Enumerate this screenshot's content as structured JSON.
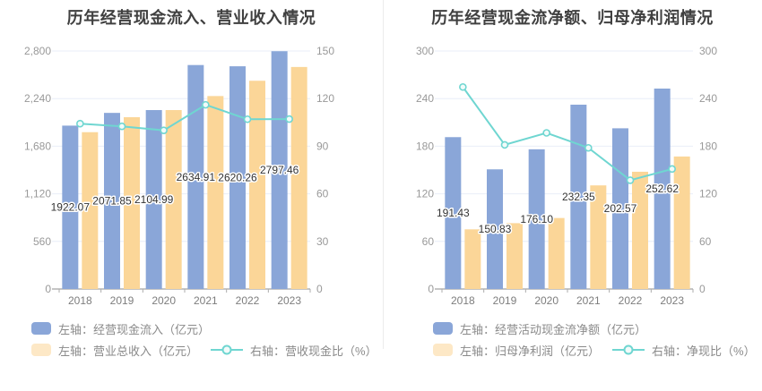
{
  "colors": {
    "background": "#FFFFFF",
    "bar_blue": "#8AA6D8",
    "bar_yellow": "#FBD698",
    "line_teal": "#6FD6D1",
    "grid": "#E9EEF8",
    "axis_line": "#8C8C8C",
    "boundary_tick": "#ADADAD",
    "tick_text": "#999999",
    "year_text": "#7D7D7D",
    "value_label": "#333333",
    "title_text": "#404040",
    "legend_text": "#8A8A8A",
    "divider": "#ECECEC",
    "marker_fill": "#F2FBFA"
  },
  "chart_data": [
    {
      "type": "bar",
      "title": "历年经营现金流入、营业收入情况",
      "categories": [
        "2018",
        "2019",
        "2020",
        "2021",
        "2022",
        "2023"
      ],
      "left_axis": {
        "min": 0,
        "max": 2800,
        "tick_labels": [
          "2,800",
          "2,240",
          "1,680",
          "1,120",
          "560",
          "0"
        ]
      },
      "right_axis": {
        "min": 0,
        "max": 150,
        "tick_labels": [
          "150",
          "120",
          "90",
          "60",
          "30",
          "0"
        ]
      },
      "grid": true,
      "legend_position": "bottom-left",
      "series": [
        {
          "kind": "bar",
          "axis": "left",
          "name": "经营现金流入",
          "legend_label": "左轴：经营现金流入（亿元）",
          "color": "#8AA6D8",
          "values": [
            1922.07,
            2071.85,
            2104.99,
            2634.91,
            2620.26,
            2797.46
          ],
          "labels": [
            "1922.07",
            "2071.85",
            "2104.99",
            "2634.91",
            "2620.26",
            "2797.46"
          ]
        },
        {
          "kind": "bar",
          "axis": "left",
          "name": "营业总收入",
          "legend_label": "左轴：营业总收入（亿元）",
          "color": "#FBD698",
          "values": [
            1845,
            2021,
            2105,
            2270,
            2450,
            2612
          ]
        },
        {
          "kind": "line",
          "axis": "right",
          "name": "营收现金比",
          "legend_label": "右轴：营收现金比（%）",
          "color": "#6FD6D1",
          "values": [
            104.2,
            102.5,
            100.0,
            116.1,
            107.0,
            107.1
          ]
        }
      ]
    },
    {
      "type": "bar",
      "title": "历年经营现金流净额、归母净利润情况",
      "categories": [
        "2018",
        "2019",
        "2020",
        "2021",
        "2022",
        "2023"
      ],
      "left_axis": {
        "min": 0,
        "max": 300,
        "tick_labels": [
          "300",
          "240",
          "180",
          "120",
          "60",
          "0"
        ]
      },
      "right_axis": {
        "min": 0,
        "max": 300,
        "tick_labels": [
          "300",
          "240",
          "180",
          "120",
          "60",
          "0"
        ]
      },
      "grid": true,
      "legend_position": "bottom-left",
      "series": [
        {
          "kind": "bar",
          "axis": "left",
          "name": "经营活动现金流净额",
          "legend_label": "左轴：经营活动现金流净额（亿元）",
          "color": "#8AA6D8",
          "values": [
            191.43,
            150.83,
            176.1,
            232.35,
            202.57,
            252.62
          ],
          "labels": [
            "191.43",
            "150.83",
            "176.10",
            "232.35",
            "202.57",
            "252.62"
          ]
        },
        {
          "kind": "bar",
          "axis": "left",
          "name": "归母净利润",
          "legend_label": "左轴：归母净利润（亿元）",
          "color": "#FBD698",
          "values": [
            75.2,
            83.0,
            89.5,
            130.6,
            147.8,
            167.0
          ]
        },
        {
          "kind": "line",
          "axis": "right",
          "name": "净现比",
          "legend_label": "右轴：净现比（%）",
          "color": "#6FD6D1",
          "values": [
            254.6,
            181.7,
            196.8,
            177.9,
            137.1,
            151.3
          ]
        }
      ]
    }
  ]
}
